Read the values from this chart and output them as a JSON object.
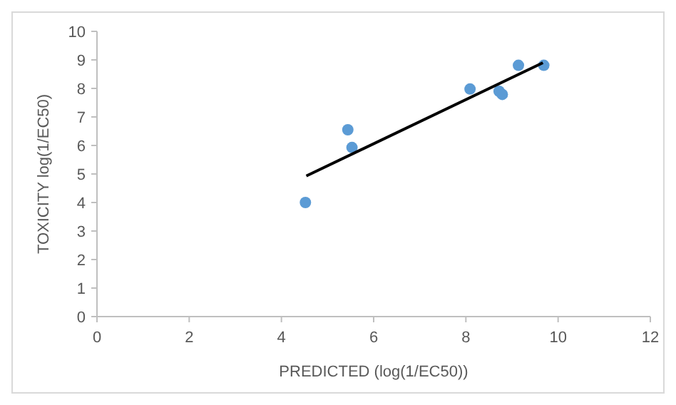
{
  "chart_data": {
    "type": "scatter",
    "xlabel": "PREDICTED (log(1/EC50))",
    "ylabel": "TOXICITY log(1/EC50)",
    "xlim": [
      0,
      12
    ],
    "xticks": [
      0,
      2,
      4,
      6,
      8,
      10,
      12
    ],
    "ylim": [
      0,
      10
    ],
    "yticks": [
      0,
      1,
      2,
      3,
      4,
      5,
      6,
      7,
      8,
      9,
      10
    ],
    "grid": false,
    "marker": "circle",
    "series": [
      {
        "color": "#5b9bd5",
        "x": [
          4.52,
          5.44,
          5.53,
          8.09,
          8.72,
          8.79,
          9.14,
          9.69
        ],
        "values": [
          4.0,
          6.55,
          5.93,
          7.98,
          7.9,
          7.79,
          8.81,
          8.81
        ]
      },
      {
        "type": "line",
        "color": "#000000",
        "x": [
          4.54,
          9.67
        ],
        "values": [
          4.93,
          8.9
        ],
        "marker": "none",
        "line_style": "solid"
      }
    ]
  }
}
